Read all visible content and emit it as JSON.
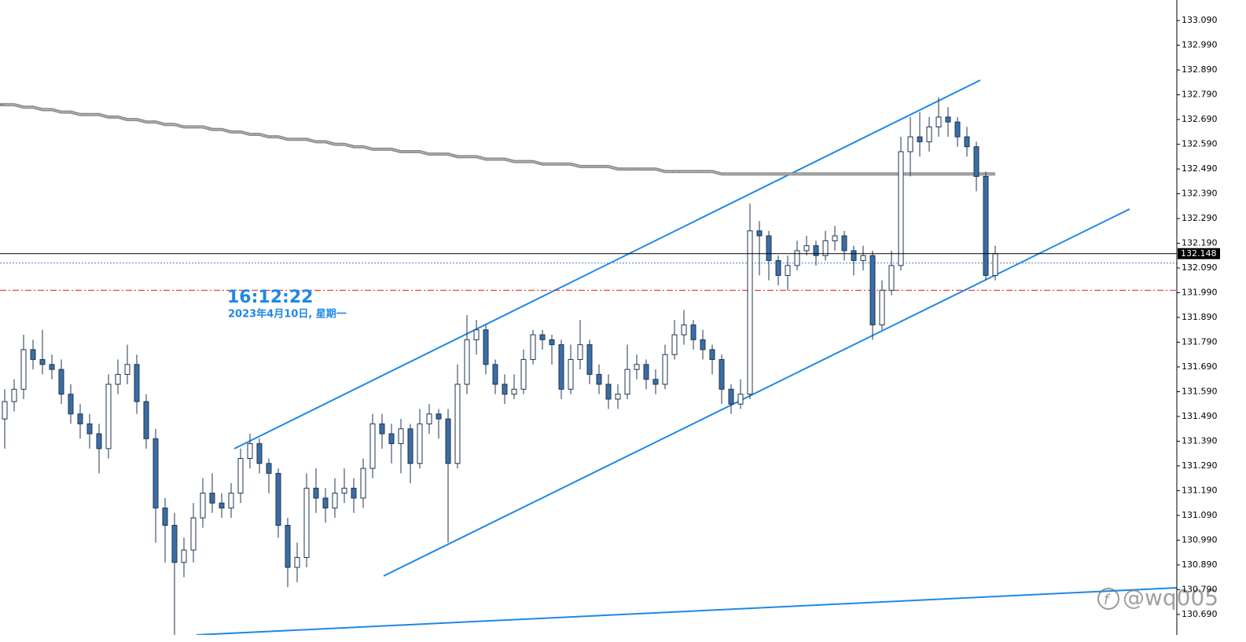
{
  "chart_data": {
    "type": "candlestick",
    "time_label": "16:12:22",
    "date_label": "2023年4月10日, 星期一",
    "watermark": "@wq005",
    "up_color": "#ffffff",
    "down_color": "#3a6ea5",
    "wick_color": "#1f3550",
    "ylim": [
      130.607,
      133.173
    ],
    "yticks": [
      {
        "value": 133.09,
        "label": "133.090"
      },
      {
        "value": 132.99,
        "label": "132.990"
      },
      {
        "value": 132.89,
        "label": "132.890"
      },
      {
        "value": 132.79,
        "label": "132.790"
      },
      {
        "value": 132.69,
        "label": "132.690"
      },
      {
        "value": 132.59,
        "label": "132.590"
      },
      {
        "value": 132.49,
        "label": "132.490"
      },
      {
        "value": 132.39,
        "label": "132.390"
      },
      {
        "value": 132.29,
        "label": "132.290"
      },
      {
        "value": 132.19,
        "label": "132.190"
      },
      {
        "value": 132.09,
        "label": "132.090"
      },
      {
        "value": 131.99,
        "label": "131.990"
      },
      {
        "value": 131.89,
        "label": "131.890"
      },
      {
        "value": 131.79,
        "label": "131.790"
      },
      {
        "value": 131.69,
        "label": "131.690"
      },
      {
        "value": 131.59,
        "label": "131.590"
      },
      {
        "value": 131.49,
        "label": "131.490"
      },
      {
        "value": 131.39,
        "label": "131.390"
      },
      {
        "value": 131.29,
        "label": "131.290"
      },
      {
        "value": 131.19,
        "label": "131.190"
      },
      {
        "value": 131.09,
        "label": "131.090"
      },
      {
        "value": 130.99,
        "label": "130.990"
      },
      {
        "value": 130.89,
        "label": "130.890"
      },
      {
        "value": 130.79,
        "label": "130.790"
      },
      {
        "value": 130.69,
        "label": "130.690"
      }
    ],
    "bid": 132.148,
    "bid_line_color": "#000000",
    "ask": 132.11,
    "ask_line_color": "#4a7fc0",
    "level": 132.0,
    "level_color": "#e02020",
    "ma": {
      "color": "#8a8a8a",
      "values": [
        132.75,
        132.75,
        132.74,
        132.74,
        132.73,
        132.73,
        132.72,
        132.72,
        132.71,
        132.71,
        132.71,
        132.7,
        132.7,
        132.69,
        132.69,
        132.68,
        132.68,
        132.67,
        132.67,
        132.66,
        132.66,
        132.66,
        132.65,
        132.65,
        132.64,
        132.64,
        132.63,
        132.63,
        132.62,
        132.62,
        132.61,
        132.61,
        132.61,
        132.6,
        132.6,
        132.59,
        132.59,
        132.58,
        132.58,
        132.57,
        132.57,
        132.57,
        132.56,
        132.56,
        132.56,
        132.55,
        132.55,
        132.55,
        132.54,
        132.54,
        132.54,
        132.53,
        132.53,
        132.53,
        132.52,
        132.52,
        132.52,
        132.51,
        132.51,
        132.51,
        132.51,
        132.5,
        132.5,
        132.5,
        132.5,
        132.49,
        132.49,
        132.49,
        132.49,
        132.49,
        132.48,
        132.48,
        132.48,
        132.48,
        132.48,
        132.48,
        132.47,
        132.47,
        132.47,
        132.47,
        132.47,
        132.47,
        132.47,
        132.47,
        132.47,
        132.47,
        132.47,
        132.47,
        132.47,
        132.47,
        132.47,
        132.47,
        132.47,
        132.47,
        132.47,
        132.47,
        132.47,
        132.47,
        132.47,
        132.47,
        132.47,
        132.47,
        132.47,
        132.47,
        132.47,
        132.47
      ]
    },
    "candles": [
      [
        131.48,
        131.6,
        131.36,
        131.55
      ],
      [
        131.55,
        131.64,
        131.51,
        131.6
      ],
      [
        131.6,
        131.82,
        131.56,
        131.76
      ],
      [
        131.76,
        131.8,
        131.68,
        131.72
      ],
      [
        131.72,
        131.84,
        131.66,
        131.7
      ],
      [
        131.7,
        131.74,
        131.64,
        131.68
      ],
      [
        131.68,
        131.72,
        131.54,
        131.58
      ],
      [
        131.58,
        131.62,
        131.46,
        131.5
      ],
      [
        131.5,
        131.54,
        131.4,
        131.46
      ],
      [
        131.46,
        131.5,
        131.36,
        131.42
      ],
      [
        131.42,
        131.46,
        131.26,
        131.36
      ],
      [
        131.36,
        131.66,
        131.32,
        131.62
      ],
      [
        131.62,
        131.72,
        131.58,
        131.66
      ],
      [
        131.66,
        131.78,
        131.62,
        131.7
      ],
      [
        131.7,
        131.74,
        131.5,
        131.55
      ],
      [
        131.55,
        131.58,
        131.36,
        131.4
      ],
      [
        131.4,
        131.44,
        130.98,
        131.12
      ],
      [
        131.12,
        131.16,
        130.9,
        131.05
      ],
      [
        131.05,
        131.1,
        130.607,
        130.9
      ],
      [
        130.9,
        131.0,
        130.84,
        130.95
      ],
      [
        130.95,
        131.14,
        130.9,
        131.08
      ],
      [
        131.08,
        131.24,
        131.04,
        131.18
      ],
      [
        131.18,
        131.26,
        131.1,
        131.14
      ],
      [
        131.14,
        131.18,
        131.08,
        131.12
      ],
      [
        131.12,
        131.22,
        131.08,
        131.18
      ],
      [
        131.18,
        131.36,
        131.14,
        131.32
      ],
      [
        131.32,
        131.42,
        131.28,
        131.38
      ],
      [
        131.38,
        131.4,
        131.26,
        131.3
      ],
      [
        131.3,
        131.32,
        131.18,
        131.26
      ],
      [
        131.26,
        131.28,
        131.0,
        131.05
      ],
      [
        131.05,
        131.08,
        130.8,
        130.88
      ],
      [
        130.88,
        130.98,
        130.82,
        130.92
      ],
      [
        130.92,
        131.26,
        130.88,
        131.2
      ],
      [
        131.2,
        131.28,
        131.1,
        131.16
      ],
      [
        131.16,
        131.2,
        131.06,
        131.12
      ],
      [
        131.12,
        131.24,
        131.08,
        131.18
      ],
      [
        131.18,
        131.28,
        131.14,
        131.2
      ],
      [
        131.2,
        131.24,
        131.1,
        131.16
      ],
      [
        131.16,
        131.32,
        131.12,
        131.28
      ],
      [
        131.28,
        131.5,
        131.24,
        131.46
      ],
      [
        131.46,
        131.5,
        131.36,
        131.42
      ],
      [
        131.42,
        131.46,
        131.3,
        131.38
      ],
      [
        131.38,
        131.48,
        131.26,
        131.44
      ],
      [
        131.44,
        131.46,
        131.22,
        131.3
      ],
      [
        131.3,
        131.52,
        131.28,
        131.46
      ],
      [
        131.46,
        131.54,
        131.42,
        131.5
      ],
      [
        131.5,
        131.52,
        131.4,
        131.48
      ],
      [
        131.48,
        131.52,
        130.98,
        131.3
      ],
      [
        131.3,
        131.7,
        131.28,
        131.62
      ],
      [
        131.62,
        131.9,
        131.58,
        131.8
      ],
      [
        131.8,
        131.88,
        131.74,
        131.84
      ],
      [
        131.84,
        131.86,
        131.66,
        131.7
      ],
      [
        131.7,
        131.72,
        131.58,
        131.62
      ],
      [
        131.62,
        131.66,
        131.54,
        131.58
      ],
      [
        131.58,
        131.66,
        131.56,
        131.6
      ],
      [
        131.6,
        131.76,
        131.58,
        131.72
      ],
      [
        131.72,
        131.84,
        131.7,
        131.82
      ],
      [
        131.82,
        131.84,
        131.76,
        131.8
      ],
      [
        131.8,
        131.82,
        131.7,
        131.78
      ],
      [
        131.78,
        131.8,
        131.56,
        131.6
      ],
      [
        131.6,
        131.78,
        131.58,
        131.72
      ],
      [
        131.72,
        131.88,
        131.68,
        131.78
      ],
      [
        131.78,
        131.8,
        131.62,
        131.66
      ],
      [
        131.66,
        131.7,
        131.58,
        131.62
      ],
      [
        131.62,
        131.66,
        131.52,
        131.56
      ],
      [
        131.56,
        131.62,
        131.52,
        131.58
      ],
      [
        131.58,
        131.78,
        131.56,
        131.68
      ],
      [
        131.68,
        131.74,
        131.64,
        131.7
      ],
      [
        131.7,
        131.72,
        131.6,
        131.64
      ],
      [
        131.64,
        131.68,
        131.58,
        131.62
      ],
      [
        131.62,
        131.78,
        131.6,
        131.74
      ],
      [
        131.74,
        131.88,
        131.72,
        131.82
      ],
      [
        131.82,
        131.92,
        131.78,
        131.86
      ],
      [
        131.86,
        131.88,
        131.76,
        131.8
      ],
      [
        131.8,
        131.84,
        131.72,
        131.76
      ],
      [
        131.76,
        131.78,
        131.66,
        131.72
      ],
      [
        131.72,
        131.74,
        131.54,
        131.6
      ],
      [
        131.6,
        131.62,
        131.5,
        131.54
      ],
      [
        131.54,
        131.64,
        131.52,
        131.58
      ],
      [
        131.58,
        132.35,
        131.56,
        132.24
      ],
      [
        132.24,
        132.28,
        132.06,
        132.22
      ],
      [
        132.22,
        132.24,
        132.04,
        132.12
      ],
      [
        132.12,
        132.14,
        132.02,
        132.06
      ],
      [
        132.06,
        132.14,
        132.0,
        132.1
      ],
      [
        132.1,
        132.2,
        132.08,
        132.16
      ],
      [
        132.16,
        132.22,
        132.14,
        132.18
      ],
      [
        132.18,
        132.2,
        132.1,
        132.14
      ],
      [
        132.14,
        132.24,
        132.12,
        132.2
      ],
      [
        132.2,
        132.26,
        132.16,
        132.22
      ],
      [
        132.22,
        132.24,
        132.12,
        132.16
      ],
      [
        132.16,
        132.18,
        132.06,
        132.12
      ],
      [
        132.12,
        132.18,
        132.08,
        132.14
      ],
      [
        132.14,
        132.16,
        131.8,
        131.86
      ],
      [
        131.86,
        132.04,
        131.84,
        132.0
      ],
      [
        132.0,
        132.16,
        131.98,
        132.1
      ],
      [
        132.1,
        132.62,
        132.08,
        132.56
      ],
      [
        132.56,
        132.7,
        132.46,
        132.62
      ],
      [
        132.62,
        132.72,
        132.54,
        132.6
      ],
      [
        132.6,
        132.7,
        132.56,
        132.66
      ],
      [
        132.66,
        132.78,
        132.62,
        132.7
      ],
      [
        132.7,
        132.74,
        132.62,
        132.68
      ],
      [
        132.68,
        132.7,
        132.58,
        132.62
      ],
      [
        132.62,
        132.66,
        132.54,
        132.58
      ],
      [
        132.58,
        132.6,
        132.4,
        132.46
      ],
      [
        132.46,
        132.48,
        132.04,
        132.06
      ],
      [
        132.06,
        132.18,
        132.04,
        132.148
      ]
    ]
  }
}
